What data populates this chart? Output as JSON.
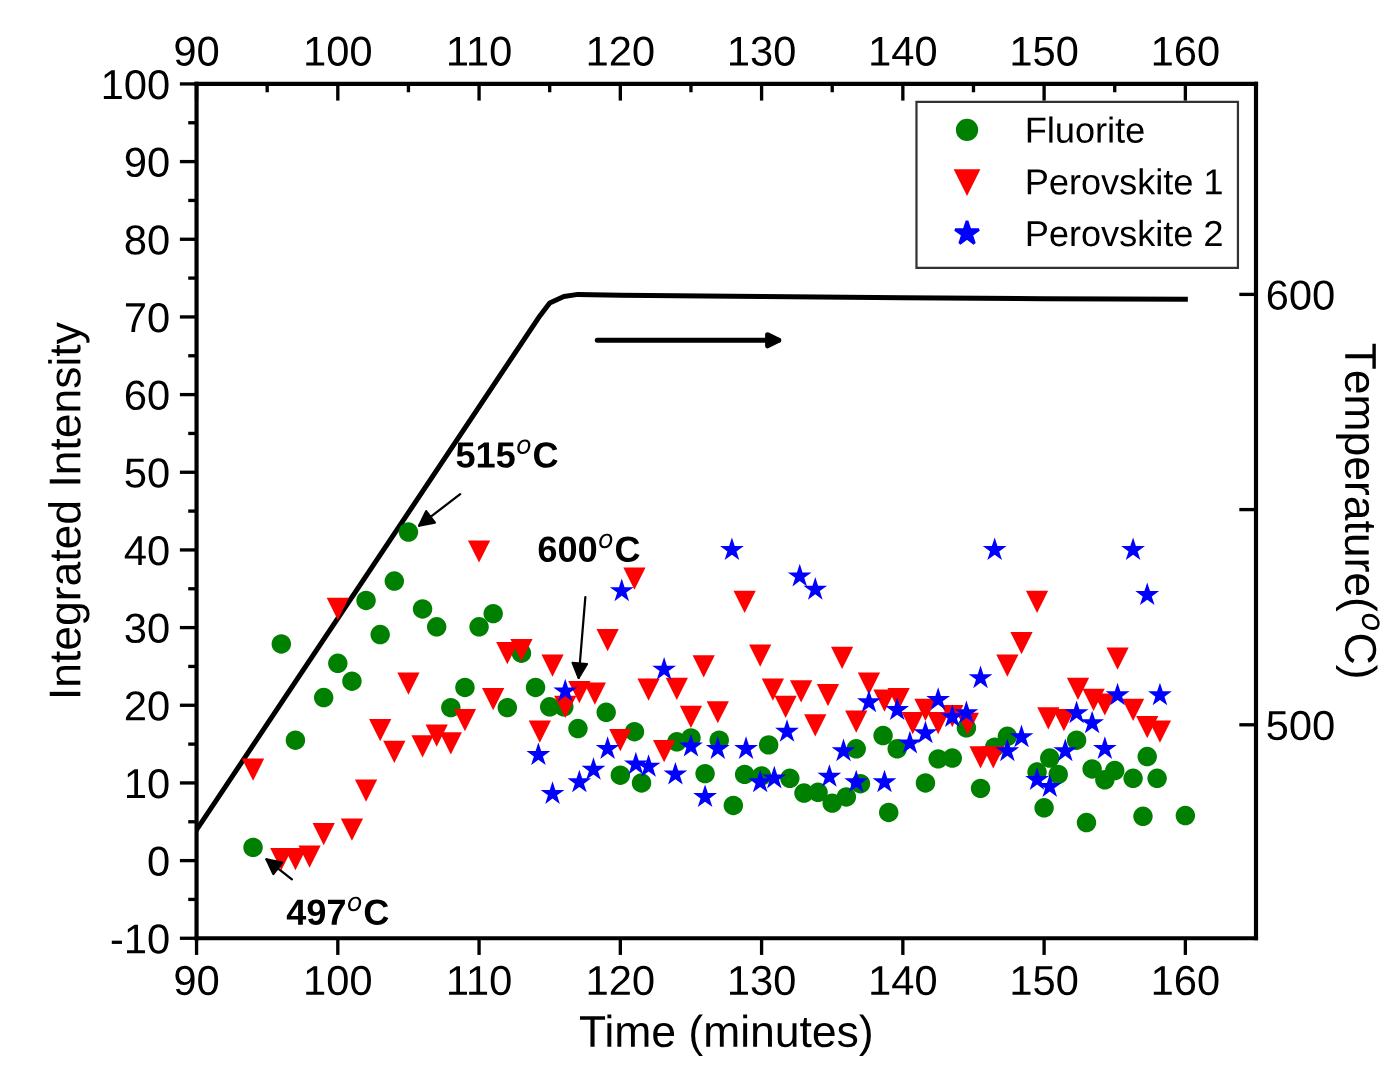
{
  "chart_data": {
    "type": "scatter",
    "xlabel": "Time (minutes)",
    "ylabel": "Integrated Intensity",
    "y2label": "Temperature($^{o}$C)",
    "xlim": [
      90,
      165
    ],
    "xticks": [
      90,
      100,
      110,
      120,
      130,
      140,
      150,
      160
    ],
    "x2lim": [
      90,
      165
    ],
    "x2ticks": [
      90,
      100,
      110,
      120,
      130,
      140,
      150,
      160
    ],
    "ylim": [
      -10,
      100
    ],
    "yticks": [
      -10,
      0,
      10,
      20,
      30,
      40,
      50,
      60,
      70,
      80,
      90,
      100
    ],
    "y2lim": [
      450.4,
      648.9
    ],
    "y2ticks": [
      500,
      {
        "value": 550,
        "label": null
      },
      600
    ],
    "grid": false,
    "legend": "top right",
    "annotations": [
      {
        "text": "515$^{o}$C",
        "x": 105.3,
        "y": 42.5
      },
      {
        "text": "600$^{o}$C",
        "x": 117,
        "y": 22.5
      },
      {
        "text": "497$^{o}$C",
        "x": 94.5,
        "y": 0.8
      }
    ],
    "series": [
      {
        "name": "Fluorite",
        "marker": "circle",
        "color": "#008000",
        "x": [
          94,
          96,
          97,
          99,
          100,
          101,
          102,
          103,
          104,
          105,
          106,
          107,
          108,
          109,
          110,
          111,
          112,
          113,
          114,
          115,
          116,
          117,
          119,
          120,
          121,
          121.5,
          124,
          125,
          126,
          127,
          128,
          128.8,
          130,
          130.5,
          132,
          133,
          134,
          135,
          136,
          136.7,
          137,
          138.6,
          139,
          139.6,
          141.6,
          142.5,
          143.5,
          144.5,
          145.5,
          146.5,
          147.4,
          149.5,
          150,
          150.4,
          151,
          152.3,
          153,
          153.4,
          154.3,
          155,
          156.3,
          157,
          157.3,
          158,
          160
        ],
        "values": [
          1.7,
          27.9,
          15.5,
          21.0,
          25.4,
          23.1,
          33.5,
          29.1,
          36.0,
          42.3,
          32.4,
          30.1,
          19.7,
          22.3,
          30.1,
          31.8,
          19.7,
          26.7,
          22.3,
          19.8,
          19.8,
          17.0,
          19.1,
          11.0,
          16.6,
          10.0,
          15.3,
          15.8,
          11.2,
          15.5,
          7.1,
          11.1,
          10.9,
          14.9,
          10.6,
          8.7,
          8.8,
          7.4,
          8.2,
          14.4,
          9.9,
          16.1,
          6.2,
          14.4,
          10.0,
          13.1,
          13.2,
          17.1,
          9.3,
          14.6,
          16.0,
          11.4,
          6.8,
          13.2,
          11.1,
          15.5,
          4.9,
          11.8,
          10.4,
          11.6,
          10.6,
          5.7,
          13.4,
          10.6,
          5.8
        ]
      },
      {
        "name": "Perovskite 1",
        "marker": "triangle",
        "color": "#ff0000",
        "x": [
          94,
          96,
          97,
          98,
          99,
          100,
          101,
          102,
          103,
          104,
          105,
          106,
          107,
          108,
          109,
          110,
          111,
          112,
          113,
          114.3,
          115.2,
          116.1,
          117.1,
          118.2,
          119.1,
          120,
          121,
          122,
          123.1,
          124,
          125,
          125.9,
          126.9,
          128.8,
          129.9,
          130.8,
          131.7,
          132.8,
          133.8,
          134.7,
          135.7,
          136.7,
          137.6,
          138.7,
          139.7,
          140.7,
          141.6,
          142.5,
          143.5,
          144.6,
          145.5,
          146.4,
          147.4,
          148.4,
          149.5,
          150.3,
          151.4,
          152.4,
          153.5,
          154.3,
          155.2,
          156.3,
          157.3,
          158.2
        ],
        "values": [
          11.7,
          0.2,
          0.2,
          0.5,
          3.4,
          32.4,
          4.0,
          9.0,
          16.8,
          14.0,
          22.8,
          14.7,
          16.1,
          15.1,
          18.1,
          39.8,
          20.8,
          26.7,
          27.1,
          16.6,
          25.1,
          19.8,
          21.7,
          21.5,
          28.4,
          15.5,
          36.3,
          22.0,
          14.1,
          22.1,
          18.5,
          25.0,
          19.1,
          33.3,
          26.4,
          22.0,
          19.8,
          21.8,
          17.4,
          21.3,
          26.1,
          17.9,
          22.8,
          20.6,
          20.8,
          17.7,
          19.4,
          17.7,
          18.6,
          17.6,
          13.3,
          13.3,
          25.1,
          28.0,
          33.3,
          18.3,
          18.1,
          22.1,
          20.7,
          20.1,
          26.0,
          19.4,
          17.2,
          16.6
        ]
      },
      {
        "name": "Perovskite 2",
        "marker": "star",
        "color": "#0000ff",
        "x": [
          114.2,
          115.2,
          116.1,
          117.1,
          118.1,
          119.1,
          120.1,
          121.1,
          122,
          123.1,
          123.9,
          125,
          126,
          126.9,
          127.9,
          128.9,
          129.9,
          130.9,
          131.8,
          132.7,
          133.8,
          134.8,
          135.8,
          136.7,
          137.6,
          138.7,
          139.6,
          140.5,
          141.6,
          142.5,
          143.5,
          144.5,
          145.5,
          146.5,
          147.4,
          148.4,
          149.5,
          150.4,
          151.5,
          152.3,
          153.4,
          154.3,
          155.2,
          156.3,
          157.3,
          158.2
        ],
        "values": [
          13.6,
          8.6,
          21.8,
          10.1,
          11.7,
          14.4,
          34.7,
          12.4,
          12.1,
          24.6,
          11.1,
          14.7,
          8.2,
          14.4,
          40.0,
          14.4,
          10.1,
          10.6,
          16.6,
          36.6,
          34.9,
          10.8,
          14.1,
          10.1,
          20.4,
          10.1,
          19.4,
          15.1,
          16.4,
          20.7,
          18.5,
          19.0,
          23.5,
          40.0,
          14.1,
          15.9,
          10.4,
          9.5,
          14.1,
          19.0,
          17.7,
          14.4,
          21.3,
          40.0,
          34.2,
          21.3
        ]
      },
      {
        "type": "line",
        "axis": "y2",
        "color": "#000000",
        "x": [
          90,
          114.3,
          115,
          116,
          117,
          120,
          130,
          140,
          150,
          160
        ],
        "values": [
          475.6,
          595,
          598,
          599.5,
          600,
          599.8,
          599.5,
          599.2,
          599,
          598.9
        ]
      }
    ]
  }
}
